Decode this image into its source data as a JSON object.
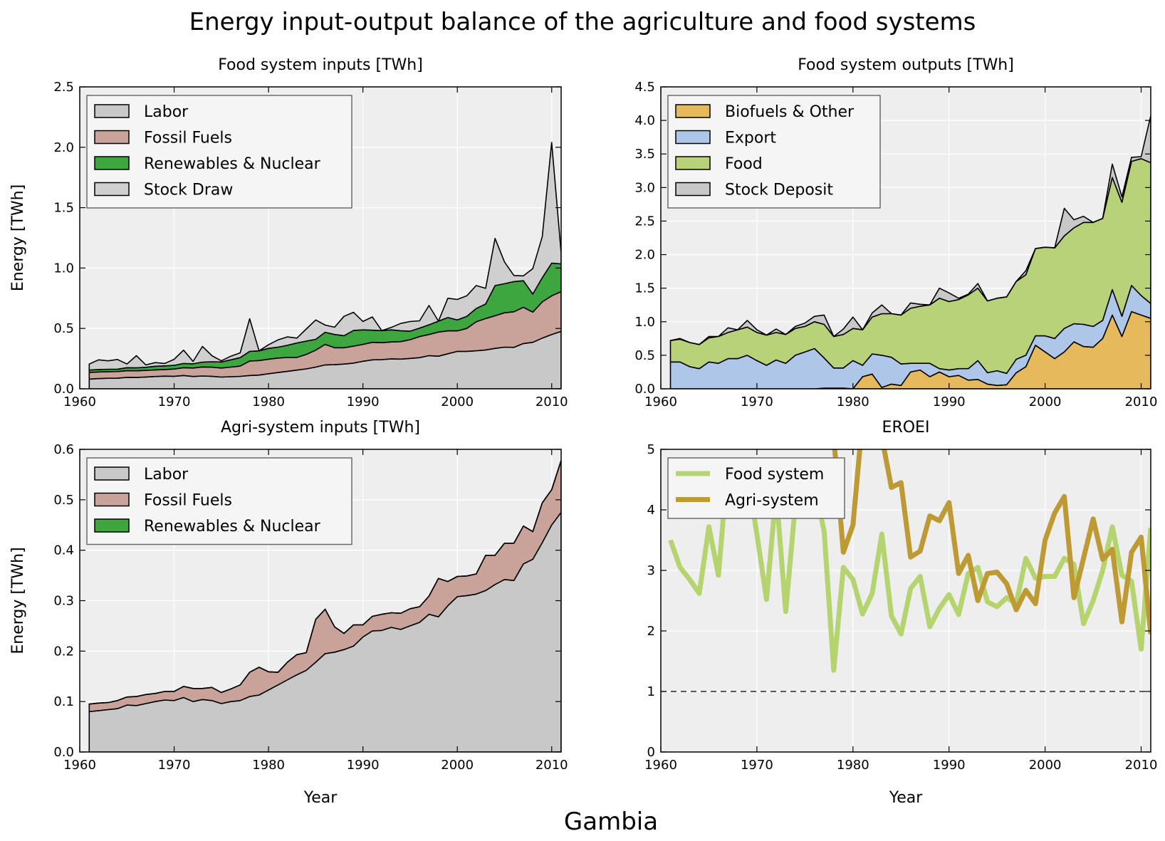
{
  "figure": {
    "title": "Energy input-output balance of the agriculture and food systems",
    "country": "Gambia",
    "background": "#ffffff",
    "axes_background": "#eeeeee",
    "grid_color": "#ffffff"
  },
  "chart_data": [
    {
      "type": "area",
      "stacked": true,
      "title": "Food system inputs [TWh]",
      "xlabel": "",
      "ylabel": "Energy [TWh]",
      "xlim": [
        1960,
        2011
      ],
      "ylim": [
        0,
        2.5
      ],
      "xticks": [
        "1960",
        "1970",
        "1980",
        "1990",
        "2000",
        "2010"
      ],
      "yticks": [
        "0.0",
        "0.5",
        "1.0",
        "1.5",
        "2.0",
        "2.5"
      ],
      "grid": true,
      "legend": "upper left",
      "x": [
        1961,
        1962,
        1963,
        1964,
        1965,
        1966,
        1967,
        1968,
        1969,
        1970,
        1971,
        1972,
        1973,
        1974,
        1975,
        1976,
        1977,
        1978,
        1979,
        1980,
        1981,
        1982,
        1983,
        1984,
        1985,
        1986,
        1987,
        1988,
        1989,
        1990,
        1991,
        1992,
        1993,
        1994,
        1995,
        1996,
        1997,
        1998,
        1999,
        2000,
        2001,
        2002,
        2003,
        2004,
        2005,
        2006,
        2007,
        2008,
        2009,
        2010,
        2011
      ],
      "series": [
        {
          "name": "Labor",
          "color": "#c8c8c8",
          "values": [
            0.08,
            0.085,
            0.087,
            0.088,
            0.095,
            0.094,
            0.098,
            0.102,
            0.105,
            0.104,
            0.11,
            0.102,
            0.106,
            0.104,
            0.097,
            0.1,
            0.103,
            0.11,
            0.114,
            0.125,
            0.135,
            0.145,
            0.155,
            0.165,
            0.18,
            0.198,
            0.2,
            0.205,
            0.213,
            0.228,
            0.24,
            0.242,
            0.248,
            0.246,
            0.252,
            0.258,
            0.275,
            0.27,
            0.29,
            0.31,
            0.31,
            0.315,
            0.322,
            0.335,
            0.345,
            0.343,
            0.375,
            0.385,
            0.42,
            0.45,
            0.475
          ]
        },
        {
          "name": "Fossil Fuels",
          "color": "#c9a39a",
          "values": [
            0.055,
            0.055,
            0.055,
            0.055,
            0.055,
            0.055,
            0.055,
            0.055,
            0.055,
            0.06,
            0.065,
            0.07,
            0.075,
            0.075,
            0.075,
            0.08,
            0.085,
            0.12,
            0.12,
            0.12,
            0.12,
            0.115,
            0.105,
            0.12,
            0.14,
            0.17,
            0.14,
            0.135,
            0.14,
            0.14,
            0.145,
            0.14,
            0.14,
            0.145,
            0.155,
            0.175,
            0.175,
            0.2,
            0.19,
            0.17,
            0.19,
            0.24,
            0.26,
            0.27,
            0.285,
            0.295,
            0.3,
            0.25,
            0.3,
            0.32,
            0.33
          ]
        },
        {
          "name": "Renewables & Nuclear",
          "color": "#3ea63e",
          "values": [
            0.02,
            0.02,
            0.02,
            0.02,
            0.025,
            0.025,
            0.025,
            0.03,
            0.03,
            0.03,
            0.035,
            0.035,
            0.04,
            0.045,
            0.05,
            0.06,
            0.07,
            0.08,
            0.08,
            0.09,
            0.09,
            0.1,
            0.12,
            0.11,
            0.09,
            0.1,
            0.11,
            0.1,
            0.13,
            0.12,
            0.1,
            0.1,
            0.1,
            0.09,
            0.07,
            0.07,
            0.08,
            0.09,
            0.11,
            0.09,
            0.1,
            0.11,
            0.12,
            0.25,
            0.24,
            0.25,
            0.22,
            0.15,
            0.2,
            0.27,
            0.23
          ]
        },
        {
          "name": "Stock Draw",
          "color": "#cfcfcf",
          "values": [
            0.05,
            0.08,
            0.07,
            0.08,
            0.03,
            0.1,
            0.02,
            0.03,
            0.02,
            0.05,
            0.11,
            0.02,
            0.13,
            0.05,
            0.01,
            0.03,
            0.04,
            0.27,
            0,
            0.03,
            0.06,
            0.07,
            0.04,
            0.1,
            0.16,
            0.06,
            0.06,
            0.16,
            0.15,
            0.07,
            0.11,
            0,
            0.02,
            0.06,
            0.08,
            0.06,
            0.16,
            0,
            0.16,
            0.17,
            0.17,
            0.19,
            0.13,
            0.39,
            0.18,
            0.05,
            0.04,
            0.21,
            0.34,
            1,
            0.09
          ]
        }
      ]
    },
    {
      "type": "area",
      "stacked": true,
      "title": "Food system outputs [TWh]",
      "xlabel": "",
      "ylabel": "",
      "xlim": [
        1960,
        2011
      ],
      "ylim": [
        0,
        4.5
      ],
      "xticks": [
        "1960",
        "1970",
        "1980",
        "1990",
        "2000",
        "2010"
      ],
      "yticks": [
        "0.0",
        "0.5",
        "1.0",
        "1.5",
        "2.0",
        "2.5",
        "3.0",
        "3.5",
        "4.0",
        "4.5"
      ],
      "grid": true,
      "legend": "upper left",
      "x": [
        1961,
        1962,
        1963,
        1964,
        1965,
        1966,
        1967,
        1968,
        1969,
        1970,
        1971,
        1972,
        1973,
        1974,
        1975,
        1976,
        1977,
        1978,
        1979,
        1980,
        1981,
        1982,
        1983,
        1984,
        1985,
        1986,
        1987,
        1988,
        1989,
        1990,
        1991,
        1992,
        1993,
        1994,
        1995,
        1996,
        1997,
        1998,
        1999,
        2000,
        2001,
        2002,
        2003,
        2004,
        2005,
        2006,
        2007,
        2008,
        2009,
        2010,
        2011
      ],
      "series": [
        {
          "name": "Biofuels & Other",
          "color": "#e6b95c",
          "values": [
            0,
            0,
            0,
            0,
            0,
            0,
            0,
            0,
            0,
            0,
            0,
            0,
            0,
            0,
            0,
            0,
            0.01,
            0.01,
            0.01,
            0,
            0.18,
            0.22,
            0.02,
            0.07,
            0.05,
            0.25,
            0.28,
            0.18,
            0.25,
            0.18,
            0.2,
            0.13,
            0.14,
            0.07,
            0.05,
            0.06,
            0.24,
            0.33,
            0.65,
            0.55,
            0.45,
            0.55,
            0.7,
            0.63,
            0.62,
            0.75,
            1.1,
            0.78,
            1.15,
            1.1,
            1.05
          ]
        },
        {
          "name": "Export",
          "color": "#aec7e8",
          "values": [
            0.4,
            0.4,
            0.33,
            0.3,
            0.4,
            0.38,
            0.45,
            0.45,
            0.5,
            0.42,
            0.35,
            0.43,
            0.38,
            0.5,
            0.55,
            0.6,
            0.45,
            0.3,
            0.3,
            0.42,
            0.17,
            0.3,
            0.48,
            0.4,
            0.32,
            0.13,
            0.1,
            0.2,
            0.05,
            0.1,
            0.1,
            0.17,
            0.28,
            0.17,
            0.22,
            0.17,
            0.2,
            0.17,
            0.14,
            0.24,
            0.3,
            0.35,
            0.27,
            0.33,
            0.31,
            0.27,
            0.38,
            0.3,
            0.39,
            0.29,
            0.22
          ]
        },
        {
          "name": "Food",
          "color": "#b8d27a",
          "values": [
            0.32,
            0.34,
            0.36,
            0.36,
            0.36,
            0.4,
            0.39,
            0.43,
            0.42,
            0.42,
            0.45,
            0.41,
            0.43,
            0.4,
            0.38,
            0.4,
            0.5,
            0.47,
            0.5,
            0.48,
            0.53,
            0.55,
            0.62,
            0.65,
            0.73,
            0.82,
            0.85,
            0.87,
            1.05,
            1.02,
            1.03,
            1.1,
            1.08,
            1.07,
            1.08,
            1.14,
            1.16,
            1.2,
            1.3,
            1.32,
            1.35,
            1.38,
            1.43,
            1.52,
            1.55,
            1.52,
            1.67,
            1.7,
            1.85,
            2.04,
            2.1
          ]
        },
        {
          "name": "Stock Deposit",
          "color": "#c8c8c8",
          "values": [
            0,
            0.01,
            0,
            0,
            0.02,
            0,
            0.07,
            0,
            0.1,
            0.04,
            0,
            0.05,
            0,
            0.03,
            0.05,
            0.08,
            0.14,
            0,
            0.08,
            0.17,
            0,
            0.06,
            0.13,
            0,
            0,
            0.08,
            0.03,
            0,
            0.15,
            0.13,
            0.02,
            0.01,
            0.07,
            0,
            0,
            0,
            0,
            0.06,
            0,
            0,
            0,
            0.41,
            0.12,
            0.09,
            0.0,
            0,
            0.2,
            0.08,
            0.06,
            0.03,
            0.7
          ]
        }
      ]
    },
    {
      "type": "area",
      "stacked": true,
      "title": "Agri-system inputs [TWh]",
      "xlabel": "Year",
      "ylabel": "Energy [TWh]",
      "xlim": [
        1960,
        2011
      ],
      "ylim": [
        0,
        0.6
      ],
      "xticks": [
        "1960",
        "1970",
        "1980",
        "1990",
        "2000",
        "2010"
      ],
      "yticks": [
        "0.0",
        "0.1",
        "0.2",
        "0.3",
        "0.4",
        "0.5",
        "0.6"
      ],
      "grid": true,
      "legend": "upper left",
      "x": [
        1961,
        1962,
        1963,
        1964,
        1965,
        1966,
        1967,
        1968,
        1969,
        1970,
        1971,
        1972,
        1973,
        1974,
        1975,
        1976,
        1977,
        1978,
        1979,
        1980,
        1981,
        1982,
        1983,
        1984,
        1985,
        1986,
        1987,
        1988,
        1989,
        1990,
        1991,
        1992,
        1993,
        1994,
        1995,
        1996,
        1997,
        1998,
        1999,
        2000,
        2001,
        2002,
        2003,
        2004,
        2005,
        2006,
        2007,
        2008,
        2009,
        2010,
        2011
      ],
      "series": [
        {
          "name": "Labor",
          "color": "#c8c8c8",
          "values": [
            0.08,
            0.082,
            0.084,
            0.086,
            0.093,
            0.092,
            0.096,
            0.1,
            0.103,
            0.102,
            0.108,
            0.1,
            0.104,
            0.102,
            0.096,
            0.1,
            0.102,
            0.11,
            0.113,
            0.123,
            0.133,
            0.143,
            0.153,
            0.162,
            0.178,
            0.195,
            0.198,
            0.203,
            0.21,
            0.228,
            0.24,
            0.241,
            0.247,
            0.243,
            0.25,
            0.257,
            0.273,
            0.268,
            0.29,
            0.308,
            0.31,
            0.313,
            0.32,
            0.332,
            0.342,
            0.34,
            0.373,
            0.382,
            0.415,
            0.45,
            0.475
          ]
        },
        {
          "name": "Fossil Fuels",
          "color": "#c9a39a",
          "values": [
            0.015,
            0.015,
            0.014,
            0.016,
            0.016,
            0.018,
            0.018,
            0.016,
            0.017,
            0.018,
            0.022,
            0.026,
            0.022,
            0.026,
            0.022,
            0.025,
            0.031,
            0.048,
            0.055,
            0.036,
            0.025,
            0.035,
            0.04,
            0.035,
            0.085,
            0.088,
            0.05,
            0.032,
            0.042,
            0.024,
            0.029,
            0.032,
            0.029,
            0.032,
            0.034,
            0.031,
            0.036,
            0.076,
            0.048,
            0.04,
            0.039,
            0.04,
            0.07,
            0.058,
            0.072,
            0.074,
            0.075,
            0.055,
            0.079,
            0.07,
            0.103
          ]
        },
        {
          "name": "Renewables & Nuclear",
          "color": "#3ea63e",
          "values": [
            0,
            0,
            0,
            0,
            0,
            0,
            0,
            0,
            0,
            0,
            0,
            0,
            0,
            0,
            0,
            0,
            0,
            0,
            0,
            0,
            0,
            0,
            0,
            0,
            0,
            0,
            0,
            0,
            0,
            0,
            0,
            0,
            0,
            0,
            0,
            0,
            0,
            0,
            0,
            0,
            0,
            0,
            0,
            0,
            0,
            0,
            0,
            0,
            0,
            0,
            0
          ]
        }
      ]
    },
    {
      "type": "line",
      "title": "EROEI",
      "xlabel": "Year",
      "ylabel": "",
      "xlim": [
        1960,
        2011
      ],
      "ylim": [
        0,
        5
      ],
      "xticks": [
        "1960",
        "1970",
        "1980",
        "1990",
        "2000",
        "2010"
      ],
      "yticks": [
        "0",
        "1",
        "2",
        "3",
        "4",
        "5"
      ],
      "grid": true,
      "legend": "upper left",
      "reference_line": 1,
      "x": [
        1961,
        1962,
        1963,
        1964,
        1965,
        1966,
        1967,
        1968,
        1969,
        1970,
        1971,
        1972,
        1973,
        1974,
        1975,
        1976,
        1977,
        1978,
        1979,
        1980,
        1981,
        1982,
        1983,
        1984,
        1985,
        1986,
        1987,
        1988,
        1989,
        1990,
        1991,
        1992,
        1993,
        1994,
        1995,
        1996,
        1997,
        1998,
        1999,
        2000,
        2001,
        2002,
        2003,
        2004,
        2005,
        2006,
        2007,
        2008,
        2009,
        2010,
        2011
      ],
      "series": [
        {
          "name": "Food system",
          "color": "#b5d470",
          "values": [
            3.5,
            3.05,
            2.85,
            2.62,
            3.72,
            2.92,
            4.8,
            4.0,
            4.6,
            3.6,
            2.52,
            4.3,
            2.32,
            4.1,
            4.7,
            4.4,
            3.65,
            1.35,
            3.05,
            2.85,
            2.28,
            2.62,
            3.6,
            2.25,
            1.95,
            2.7,
            2.9,
            2.07,
            2.37,
            2.6,
            2.27,
            2.95,
            3.05,
            2.48,
            2.4,
            2.55,
            2.45,
            3.2,
            2.87,
            2.9,
            2.9,
            3.2,
            3.1,
            2.12,
            2.5,
            3.0,
            3.72,
            2.92,
            2.82,
            1.7,
            3.7
          ]
        },
        {
          "name": "Agri-system",
          "color": "#bd9a34",
          "values": [
            null,
            null,
            null,
            null,
            null,
            null,
            null,
            null,
            null,
            null,
            null,
            null,
            null,
            null,
            null,
            null,
            null,
            5.2,
            3.3,
            3.75,
            5.5,
            6,
            5.2,
            4.37,
            4.45,
            3.22,
            3.32,
            3.9,
            3.82,
            4.12,
            2.95,
            3.25,
            2.5,
            2.95,
            2.97,
            2.78,
            2.35,
            2.67,
            2.45,
            3.5,
            3.95,
            4.22,
            2.55,
            3.2,
            3.85,
            3.18,
            3.35,
            2.15,
            3.3,
            3.55,
            1.95
          ]
        }
      ]
    }
  ]
}
